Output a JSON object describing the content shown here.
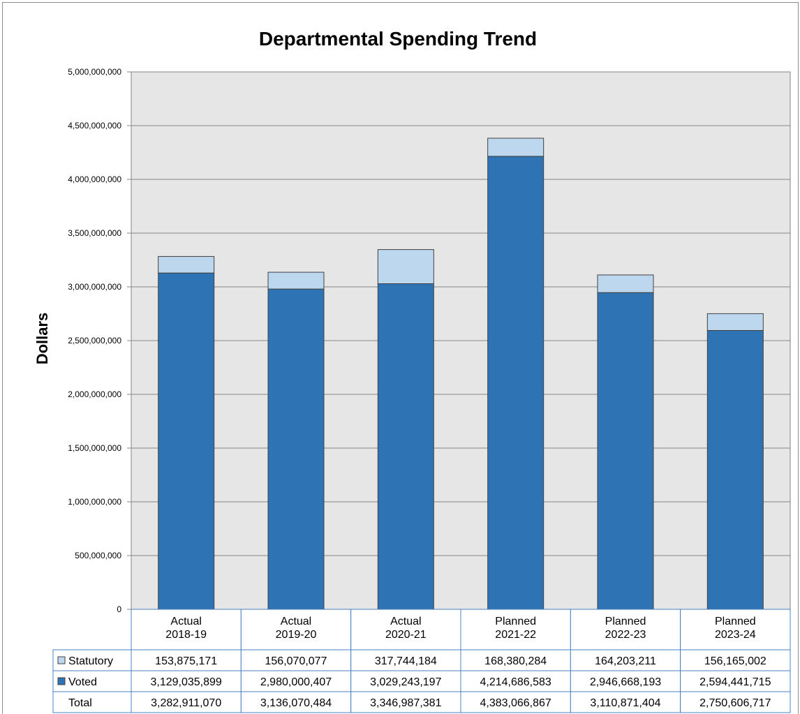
{
  "chart_data": {
    "type": "bar",
    "stacked": true,
    "title": "Departmental Spending Trend",
    "ylabel": "Dollars",
    "xlabel": "",
    "ylim": [
      0,
      5000000000
    ],
    "yticks": [
      0,
      500000000,
      1000000000,
      1500000000,
      2000000000,
      2500000000,
      3000000000,
      3500000000,
      4000000000,
      4500000000,
      5000000000
    ],
    "ytick_labels": [
      "0",
      "500,000,000",
      "1,000,000,000",
      "1,500,000,000",
      "2,000,000,000",
      "2,500,000,000",
      "3,000,000,000",
      "3,500,000,000",
      "4,000,000,000",
      "4,500,000,000",
      "5,000,000,000"
    ],
    "categories": [
      [
        "Actual",
        "2018-19"
      ],
      [
        "Actual",
        "2019-20"
      ],
      [
        "Actual",
        "2020-21"
      ],
      [
        "Planned",
        "2021-22"
      ],
      [
        "Planned",
        "2022-23"
      ],
      [
        "Planned",
        "2023-24"
      ]
    ],
    "series": [
      {
        "name": "Voted",
        "color": "#2e74b5",
        "values": [
          3129035899,
          2980000407,
          3029243197,
          4214686583,
          2946668193,
          2594441715
        ],
        "labels": [
          "3,129,035,899",
          "2,980,000,407",
          "3,029,243,197",
          "4,214,686,583",
          "2,946,668,193",
          "2,594,441,715"
        ]
      },
      {
        "name": "Statutory",
        "color": "#bdd7ee",
        "values": [
          153875171,
          156070077,
          317744184,
          168380284,
          164203211,
          156165002
        ],
        "labels": [
          "153,875,171",
          "156,070,077",
          "317,744,184",
          "168,380,284",
          "164,203,211",
          "156,165,002"
        ]
      }
    ],
    "table_rows": [
      {
        "label": "Statutory",
        "series": 1
      },
      {
        "label": "Voted",
        "series": 0
      },
      {
        "label": "Total",
        "series": null
      }
    ],
    "totals": {
      "name": "Total",
      "values": [
        3282911070,
        3136070484,
        3346987381,
        4383066867,
        3110871404,
        2750606717
      ],
      "labels": [
        "3,282,911,070",
        "3,136,070,484",
        "3,346,987,381",
        "4,383,066,867",
        "3,110,871,404",
        "2,750,606,717"
      ]
    },
    "plot_background": "#e6e6e6",
    "gridlines": true,
    "legend": "data-table-left"
  }
}
